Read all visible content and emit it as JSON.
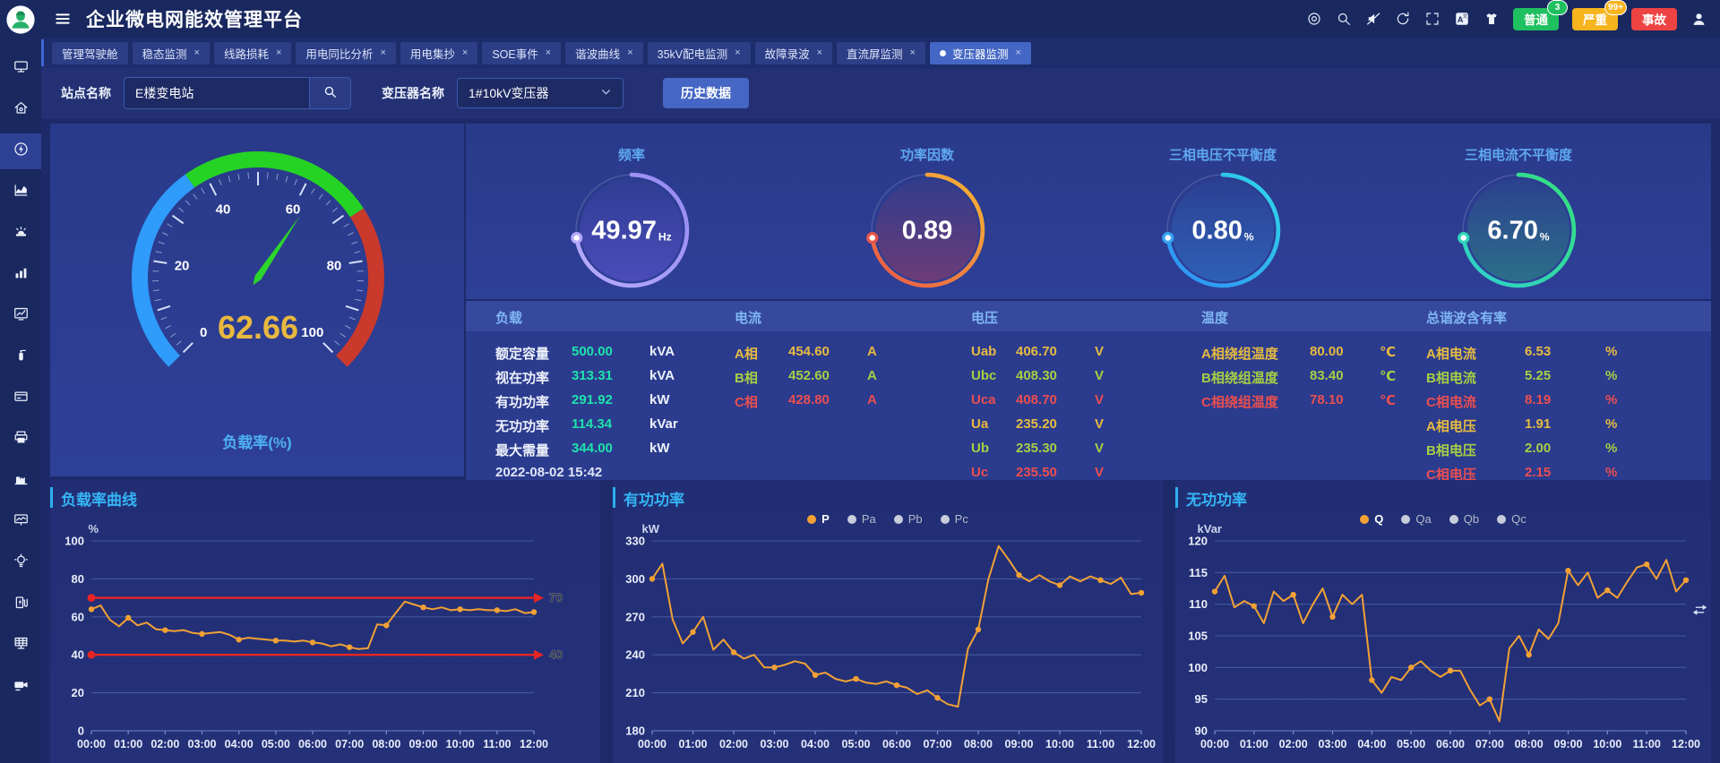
{
  "app": {
    "title": "企业微电网能效管理平台"
  },
  "header": {
    "icons": [
      "target-icon",
      "search-icon",
      "mute-icon",
      "refresh-icon",
      "fullscreen-icon",
      "translate-icon",
      "theme-icon"
    ],
    "alarm_buttons": [
      {
        "label": "普通",
        "count": "3",
        "color": "#1fc060"
      },
      {
        "label": "严重",
        "count": "99+",
        "color": "#f6b41d"
      },
      {
        "label": "事故",
        "count": "",
        "color": "#ee4343"
      }
    ],
    "user_icon": "user-icon"
  },
  "sidebar": {
    "items": [
      {
        "icon": "screen-icon",
        "active": false
      },
      {
        "icon": "home-icon",
        "active": false
      },
      {
        "icon": "energy-icon",
        "active": true
      },
      {
        "icon": "area-chart-icon",
        "active": false
      },
      {
        "icon": "alarm-icon",
        "active": false
      },
      {
        "icon": "bar-chart-icon",
        "active": false
      },
      {
        "icon": "trend-chart-icon",
        "active": false
      },
      {
        "icon": "extinguisher-icon",
        "active": false
      },
      {
        "icon": "billing-icon",
        "active": false
      },
      {
        "icon": "printer-icon",
        "active": false
      },
      {
        "icon": "station-icon",
        "active": false
      },
      {
        "icon": "wave-monitor-icon",
        "active": false
      },
      {
        "icon": "bulb-icon",
        "active": false
      },
      {
        "icon": "charging-pile-icon",
        "active": false
      },
      {
        "icon": "solar-panel-icon",
        "active": false
      },
      {
        "icon": "camera-icon",
        "active": false
      }
    ]
  },
  "tabs": [
    {
      "label": "管理驾驶舱",
      "closable": false,
      "active": false
    },
    {
      "label": "稳态监测",
      "closable": true,
      "active": false
    },
    {
      "label": "线路损耗",
      "closable": true,
      "active": false
    },
    {
      "label": "用电同比分析",
      "closable": true,
      "active": false
    },
    {
      "label": "用电集抄",
      "closable": true,
      "active": false
    },
    {
      "label": "SOE事件",
      "closable": true,
      "active": false
    },
    {
      "label": "谐波曲线",
      "closable": true,
      "active": false
    },
    {
      "label": "35kV配电监测",
      "closable": true,
      "active": false
    },
    {
      "label": "故障录波",
      "closable": true,
      "active": false
    },
    {
      "label": "直流屏监测",
      "closable": true,
      "active": false
    },
    {
      "label": "变压器监测",
      "closable": true,
      "active": true
    }
  ],
  "filter": {
    "site_label": "站点名称",
    "site_value": "E楼变电站",
    "transformer_label": "变压器名称",
    "transformer_value": "1#10kV变压器",
    "history_label": "历史数据"
  },
  "gauge": {
    "label": "负载率(%)",
    "value": "62.66",
    "value_num": 62.66,
    "min": 0,
    "max": 100,
    "tick_labels": [
      0,
      20,
      40,
      60,
      80,
      100
    ],
    "segments": [
      {
        "to": 0.37,
        "color": "#2f9bfa"
      },
      {
        "to": 0.71,
        "color": "#25d325"
      },
      {
        "to": 1.0,
        "color": "#c9392c"
      }
    ],
    "needle_color": "#2bd62b",
    "value_color": "#e9b83e"
  },
  "rings": [
    {
      "title": "频率",
      "value": "49.97",
      "unit": "Hz",
      "from": "#9488f2",
      "to": "#b9adff",
      "dot": "#b4a7ff",
      "tint": "#6a5ae0"
    },
    {
      "title": "功率因数",
      "value": "0.89",
      "unit": "",
      "from": "#f7b733",
      "to": "#e85648",
      "dot": "#e85648",
      "tint": "#b03a55"
    },
    {
      "title": "三相电压不平衡度",
      "value": "0.80",
      "unit": "%",
      "from": "#2fd8e8",
      "to": "#2f8ef5",
      "dot": "#36a4f5",
      "tint": "#2f86d8"
    },
    {
      "title": "三相电流不平衡度",
      "value": "6.70",
      "unit": "%",
      "from": "#35e07c",
      "to": "#2fd0cd",
      "dot": "#2fd8b8",
      "tint": "#2aa37c"
    }
  ],
  "palette": {
    "value_green": "#1fe3ab",
    "phase_a": "#e7bb41",
    "phase_b": "#a6cf44",
    "phase_c": "#ea4f4f",
    "header_blue": "#7fb7f5",
    "line_orange": "#f2a135",
    "threshold_red": "#e82525"
  },
  "table": {
    "columns": [
      "负载",
      "电流",
      "电压",
      "温度",
      "总谐波含有率"
    ],
    "load_rows": [
      {
        "label": "额定容量",
        "value": "500.00",
        "unit": "kVA"
      },
      {
        "label": "视在功率",
        "value": "313.31",
        "unit": "kVA"
      },
      {
        "label": "有功功率",
        "value": "291.92",
        "unit": "kW"
      },
      {
        "label": "无功功率",
        "value": "114.34",
        "unit": "kVar"
      },
      {
        "label": "最大需量",
        "value": "344.00",
        "unit": "kW"
      }
    ],
    "timestamp": "2022-08-02 15:42",
    "current_rows": [
      {
        "label": "A相",
        "value": "454.60",
        "unit": "A",
        "phase": "a"
      },
      {
        "label": "B相",
        "value": "452.60",
        "unit": "A",
        "phase": "b"
      },
      {
        "label": "C相",
        "value": "428.80",
        "unit": "A",
        "phase": "c"
      }
    ],
    "voltage_rows": [
      {
        "label": "Uab",
        "value": "406.70",
        "unit": "V",
        "phase": "a"
      },
      {
        "label": "Ubc",
        "value": "408.30",
        "unit": "V",
        "phase": "b"
      },
      {
        "label": "Uca",
        "value": "408.70",
        "unit": "V",
        "phase": "c"
      },
      {
        "label": "Ua",
        "value": "235.20",
        "unit": "V",
        "phase": "a"
      },
      {
        "label": "Ub",
        "value": "235.30",
        "unit": "V",
        "phase": "b"
      },
      {
        "label": "Uc",
        "value": "235.50",
        "unit": "V",
        "phase": "c"
      }
    ],
    "temperature_rows": [
      {
        "label": "A相绕组温度",
        "value": "80.00",
        "unit": "℃",
        "phase": "a"
      },
      {
        "label": "B相绕组温度",
        "value": "83.40",
        "unit": "℃",
        "phase": "b"
      },
      {
        "label": "C相绕组温度",
        "value": "78.10",
        "unit": "℃",
        "phase": "c"
      }
    ],
    "thd_rows": [
      {
        "label": "A相电流",
        "value": "6.53",
        "unit": "%",
        "phase": "a"
      },
      {
        "label": "B相电流",
        "value": "5.25",
        "unit": "%",
        "phase": "b"
      },
      {
        "label": "C相电流",
        "value": "8.19",
        "unit": "%",
        "phase": "c"
      },
      {
        "label": "A相电压",
        "value": "1.91",
        "unit": "%",
        "phase": "a"
      },
      {
        "label": "B相电压",
        "value": "2.00",
        "unit": "%",
        "phase": "b"
      },
      {
        "label": "C相电压",
        "value": "2.15",
        "unit": "%",
        "phase": "c"
      }
    ]
  },
  "chart_data": [
    {
      "type": "line",
      "title": "负载率曲线",
      "unit": "%",
      "ylim": [
        0,
        100
      ],
      "yticks": [
        0,
        20,
        40,
        60,
        80,
        100
      ],
      "x_labels": [
        "00:00",
        "01:00",
        "02:00",
        "03:00",
        "04:00",
        "05:00",
        "06:00",
        "07:00",
        "08:00",
        "09:00",
        "10:00",
        "11:00",
        "12:00"
      ],
      "sample_interval_min": 15,
      "line_color": "#f2a135",
      "thresholds": [
        {
          "value": 70,
          "label": "70"
        },
        {
          "value": 40,
          "label": "40"
        }
      ],
      "values": [
        64,
        66,
        58.5,
        55,
        59.5,
        55.5,
        57,
        53.5,
        53,
        52.5,
        53,
        51.5,
        51,
        51.5,
        52,
        50.5,
        48,
        49,
        48.5,
        48,
        47.5,
        47.5,
        47,
        47.5,
        46.5,
        46,
        44.5,
        45.5,
        44,
        43,
        43.5,
        56,
        55.5,
        62,
        68,
        66.5,
        65,
        64,
        65,
        63.5,
        64,
        63.5,
        64,
        63.5,
        63.5,
        63,
        64,
        62,
        62.5
      ]
    },
    {
      "type": "line",
      "title": "有功功率",
      "unit": "kW",
      "ylim": [
        180,
        330
      ],
      "yticks": [
        180,
        210,
        240,
        270,
        300,
        330
      ],
      "x_labels": [
        "00:00",
        "01:00",
        "02:00",
        "03:00",
        "04:00",
        "05:00",
        "06:00",
        "07:00",
        "08:00",
        "09:00",
        "10:00",
        "11:00",
        "12:00"
      ],
      "sample_interval_min": 15,
      "line_color": "#f2a135",
      "legend": [
        {
          "name": "P",
          "selected": true
        },
        {
          "name": "Pa",
          "selected": false
        },
        {
          "name": "Pb",
          "selected": false
        },
        {
          "name": "Pc",
          "selected": false
        }
      ],
      "values": [
        300,
        312,
        268,
        249,
        258,
        270,
        244,
        252,
        242,
        237,
        240,
        230,
        230,
        232,
        235,
        233,
        224,
        226,
        221,
        219,
        221,
        218,
        217,
        219,
        216,
        214,
        209,
        212,
        206,
        201,
        199,
        245,
        260,
        300,
        326,
        315,
        303,
        298,
        303,
        298,
        295,
        302,
        298,
        302,
        299,
        296,
        301,
        288,
        289
      ]
    },
    {
      "type": "line",
      "title": "无功功率",
      "unit": "kVar",
      "ylim": [
        90,
        120
      ],
      "yticks": [
        90,
        95,
        100,
        105,
        110,
        115,
        120
      ],
      "x_labels": [
        "00:00",
        "01:00",
        "02:00",
        "03:00",
        "04:00",
        "05:00",
        "06:00",
        "07:00",
        "08:00",
        "09:00",
        "10:00",
        "11:00",
        "12:00"
      ],
      "sample_interval_min": 15,
      "line_color": "#f2a135",
      "legend": [
        {
          "name": "Q",
          "selected": true
        },
        {
          "name": "Qa",
          "selected": false
        },
        {
          "name": "Qb",
          "selected": false
        },
        {
          "name": "Qc",
          "selected": false
        }
      ],
      "values": [
        112,
        114.5,
        109.5,
        110.5,
        109.7,
        107,
        112,
        110.5,
        111.5,
        107,
        110,
        112.5,
        108,
        111.5,
        110,
        111.5,
        98,
        96,
        98.5,
        98,
        100,
        101,
        99.5,
        98.5,
        99.5,
        99.5,
        96.5,
        94,
        95,
        91.5,
        103,
        105,
        102,
        106,
        104.5,
        107,
        115.3,
        113,
        115,
        111,
        112.2,
        111,
        113.5,
        115.8,
        116.3,
        114,
        117,
        112,
        113.8
      ]
    }
  ]
}
